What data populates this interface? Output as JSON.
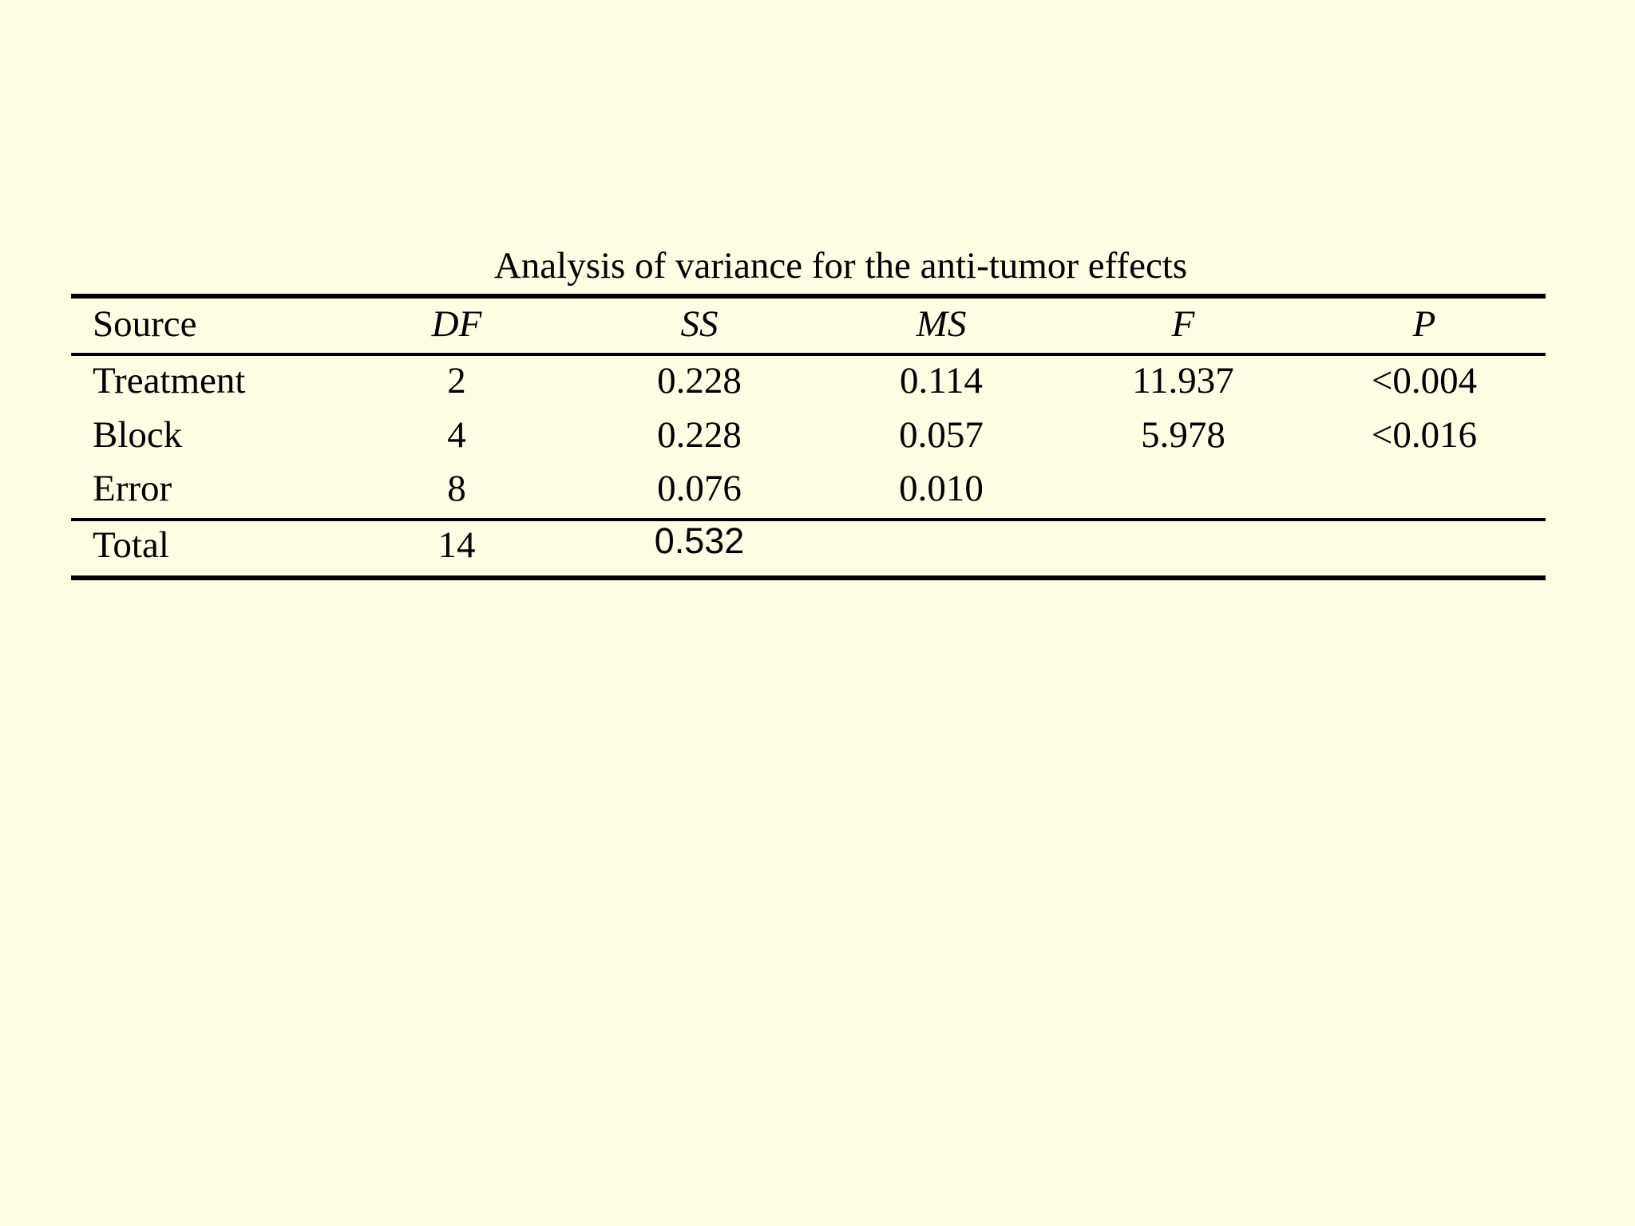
{
  "title": "Analysis of variance for the anti-tumor effects",
  "table": {
    "header": [
      "Source",
      "DF",
      "SS",
      "MS",
      "F",
      "P"
    ],
    "rows": [
      [
        "Treatment",
        "2",
        "0.228",
        "0.114",
        "11.937",
        "<0.004"
      ],
      [
        "Block",
        "4",
        "0.228",
        "0.057",
        "5.978",
        "<0.016"
      ],
      [
        "Error",
        "8",
        "0.076",
        "0.010"
      ],
      [
        "Total",
        "14",
        "0.532"
      ]
    ]
  }
}
